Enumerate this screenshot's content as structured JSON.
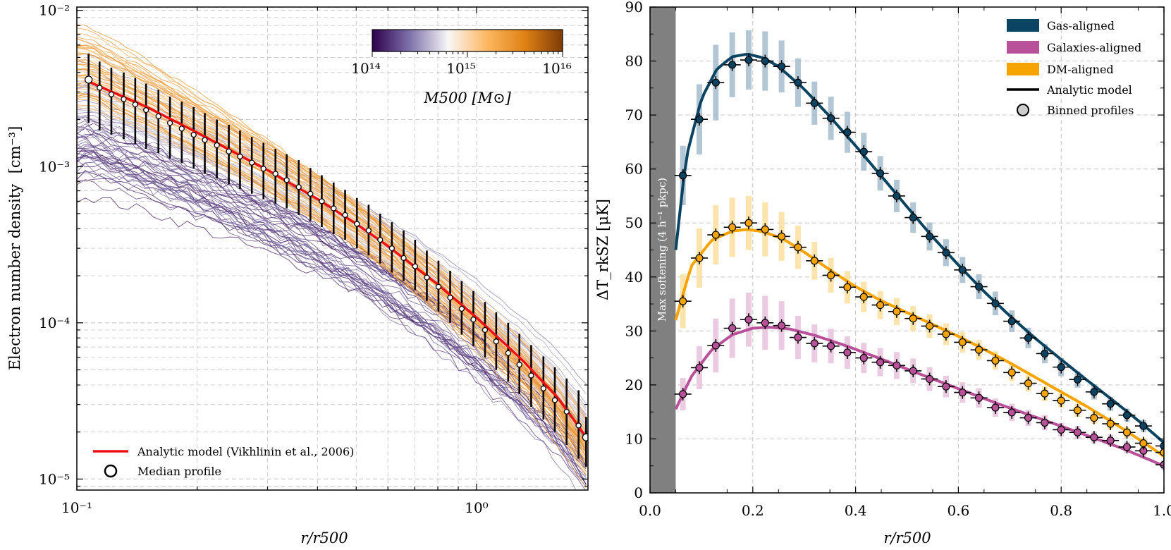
{
  "chart_data": [
    {
      "type": "line",
      "scale": "loglog",
      "xlabel": "r/r500",
      "ylabel": "Electron number density",
      "ylabel_unit": "[cm⁻³]",
      "xlim": [
        0.1,
        1.9
      ],
      "ylim": [
        8.5e-06,
        0.0105
      ],
      "x_ticks": [
        {
          "value": 0.1,
          "label": "10⁻¹"
        },
        {
          "value": 1.0,
          "label": "10⁰"
        }
      ],
      "y_ticks": [
        {
          "value": 1e-05,
          "label": "10⁻⁵"
        },
        {
          "value": 0.0001,
          "label": "10⁻⁴"
        },
        {
          "value": 0.001,
          "label": "10⁻³"
        },
        {
          "value": 0.01,
          "label": "10⁻²"
        }
      ],
      "colorbar": {
        "label": "M500 [M⊙]",
        "range": [
          100000000000000,
          10000000000000000
        ],
        "tick_labels": [
          "10¹⁴",
          "10¹⁵",
          "10¹⁶"
        ],
        "colors": [
          "#2d004b",
          "#8073ac",
          "#f7f7f7",
          "#fdb863",
          "#e08214",
          "#7f3b08"
        ]
      },
      "analytic_model": {
        "name": "Analytic model (Vikhlinin et al., 2006)",
        "color": "#ee1111",
        "x": [
          0.107,
          0.15,
          0.2,
          0.3,
          0.4,
          0.5,
          0.6,
          0.8,
          1.0,
          1.3,
          1.6,
          1.88
        ],
        "y": [
          0.0035,
          0.0024,
          0.00165,
          0.00095,
          0.00062,
          0.00043,
          0.00031,
          0.000176,
          0.000108,
          5.8e-05,
          3.3e-05,
          1.85e-05
        ]
      },
      "median_profile": {
        "name": "Median profile",
        "x": [
          0.107,
          0.114,
          0.122,
          0.131,
          0.14,
          0.149,
          0.16,
          0.171,
          0.183,
          0.196,
          0.209,
          0.224,
          0.24,
          0.256,
          0.274,
          0.293,
          0.314,
          0.335,
          0.359,
          0.384,
          0.41,
          0.439,
          0.469,
          0.502,
          0.537,
          0.574,
          0.614,
          0.657,
          0.702,
          0.751,
          0.803,
          0.859,
          0.918,
          0.982,
          1.05,
          1.12,
          1.2,
          1.28,
          1.37,
          1.47,
          1.57,
          1.68,
          1.8,
          1.88
        ],
        "y": [
          0.0036,
          0.0032,
          0.0029,
          0.0027,
          0.0025,
          0.0023,
          0.0021,
          0.0019,
          0.00175,
          0.0016,
          0.00148,
          0.00137,
          0.00125,
          0.00116,
          0.00106,
          0.00097,
          0.0009,
          0.00082,
          0.00074,
          0.00067,
          0.0006,
          0.00054,
          0.00049,
          0.00043,
          0.00039,
          0.00034,
          0.0003,
          0.00026,
          0.00023,
          0.000195,
          0.00017,
          0.000145,
          0.000123,
          0.000105,
          9e-05,
          7.6e-05,
          6.4e-05,
          5.4e-05,
          4.6e-05,
          3.8e-05,
          3.2e-05,
          2.7e-05,
          2.2e-05,
          1.85e-05
        ],
        "err_low": [
          0.0019,
          0.0017,
          0.0016,
          0.0015,
          0.0014,
          0.0013,
          0.00122,
          0.00113,
          0.00105,
          0.00097,
          0.0009,
          0.00084,
          0.00077,
          0.00072,
          0.00067,
          0.00062,
          0.00058,
          0.00054,
          0.00049,
          0.00045,
          0.00041,
          0.00037,
          0.00034,
          0.0003,
          0.00027,
          0.00024,
          0.00021,
          0.000185,
          0.000162,
          0.000138,
          0.000118,
          0.0001,
          8.4e-05,
          7.1e-05,
          6e-05,
          5e-05,
          4.2e-05,
          3.5e-05,
          2.9e-05,
          2.4e-05,
          2e-05,
          1.65e-05,
          1.35e-05,
          1.2e-05
        ],
        "err_high": [
          0.0053,
          0.0047,
          0.0043,
          0.004,
          0.0037,
          0.0034,
          0.0031,
          0.0028,
          0.0026,
          0.0024,
          0.0022,
          0.002,
          0.00185,
          0.0017,
          0.00155,
          0.00142,
          0.0013,
          0.0012,
          0.0011,
          0.00098,
          0.00088,
          0.00079,
          0.00071,
          0.00063,
          0.00057,
          0.0005,
          0.00044,
          0.00039,
          0.00034,
          0.00029,
          0.00025,
          0.000215,
          0.000185,
          0.00016,
          0.000136,
          0.000117,
          0.0001,
          8.5e-05,
          7.2e-05,
          6.1e-05,
          5.2e-05,
          4.4e-05,
          3.7e-05,
          2.5e-05
        ]
      },
      "legend": [
        {
          "label": "Analytic model (Vikhlinin et al., 2006)",
          "marker": "red-line"
        },
        {
          "label": "Median profile",
          "marker": "open-circle"
        }
      ]
    },
    {
      "type": "line",
      "xlabel": "r/r500",
      "ylabel": "ΔT_rkSZ [μK]",
      "xlim": [
        0.0,
        1.0
      ],
      "ylim": [
        0,
        90
      ],
      "x_ticks": [
        {
          "value": 0.0,
          "label": "0.0"
        },
        {
          "value": 0.2,
          "label": "0.2"
        },
        {
          "value": 0.4,
          "label": "0.4"
        },
        {
          "value": 0.6,
          "label": "0.6"
        },
        {
          "value": 0.8,
          "label": "0.8"
        },
        {
          "value": 1.0,
          "label": "1.0"
        }
      ],
      "y_ticks": [
        {
          "value": 0,
          "label": "0"
        },
        {
          "value": 10,
          "label": "10"
        },
        {
          "value": 20,
          "label": "20"
        },
        {
          "value": 30,
          "label": "30"
        },
        {
          "value": 40,
          "label": "40"
        },
        {
          "value": 50,
          "label": "50"
        },
        {
          "value": 60,
          "label": "60"
        },
        {
          "value": 70,
          "label": "70"
        },
        {
          "value": 80,
          "label": "80"
        },
        {
          "value": 90,
          "label": "90"
        }
      ],
      "softening": {
        "x_max": 0.05,
        "label": "Max softening (4 h⁻¹ pkpc)",
        "color": "#808080"
      },
      "bin_x": [
        0.064,
        0.096,
        0.128,
        0.16,
        0.192,
        0.224,
        0.256,
        0.288,
        0.32,
        0.352,
        0.384,
        0.416,
        0.448,
        0.48,
        0.512,
        0.544,
        0.576,
        0.608,
        0.64,
        0.672,
        0.704,
        0.736,
        0.768,
        0.8,
        0.832,
        0.864,
        0.896,
        0.928,
        0.96,
        1.0
      ],
      "series": [
        {
          "name": "Gas-aligned",
          "color": "#0b4362",
          "band_color": "#a6bccb",
          "binned": [
            58.8,
            69.2,
            76,
            79.3,
            80.2,
            80,
            79,
            76,
            72.2,
            69.4,
            66.8,
            63.2,
            59.2,
            55,
            51,
            47.5,
            44.5,
            41.3,
            38.2,
            35.1,
            31.8,
            28.7,
            25.8,
            23.3,
            21,
            18.7,
            16.5,
            14.4,
            12.4,
            8.7
          ],
          "band_halfwidth": [
            5.5,
            6.5,
            7,
            6,
            5.5,
            5.5,
            4.8,
            4.5,
            4,
            4,
            3.8,
            3.5,
            3.2,
            3,
            2.8,
            2.6,
            2.5,
            2.4,
            2.3,
            2.2,
            2,
            1.9,
            1.8,
            1.7,
            1.5,
            1.4,
            1.3,
            1.2,
            1.1,
            1
          ],
          "model_x": [
            0.05,
            0.07,
            0.1,
            0.13,
            0.16,
            0.19,
            0.22,
            0.25,
            0.3,
            0.35,
            0.4,
            0.45,
            0.5,
            0.55,
            0.6,
            0.65,
            0.7,
            0.75,
            0.8,
            0.85,
            0.9,
            0.95,
            1.0
          ],
          "model_y": [
            45,
            62,
            73,
            78.5,
            80.8,
            81.3,
            80.6,
            79,
            74.8,
            69.7,
            64.3,
            58.7,
            53,
            47.4,
            42.2,
            37.3,
            32.8,
            28.6,
            24.7,
            20.9,
            17.2,
            13.4,
            9.3
          ]
        },
        {
          "name": "Galaxies-aligned",
          "color": "#b9509a",
          "band_color": "#e6c2dc",
          "binned": [
            18.3,
            23.2,
            27.3,
            30.5,
            32.1,
            31.5,
            31,
            28.8,
            27.7,
            27.2,
            26,
            25,
            24.2,
            23.6,
            22.6,
            21.1,
            19.7,
            18.6,
            17.6,
            15.8,
            14.9,
            13.9,
            13,
            11.7,
            11.2,
            10.3,
            9.7,
            8.5,
            7.8,
            5.2
          ],
          "band_halfwidth": [
            3,
            4,
            5,
            5.5,
            5,
            5,
            4.5,
            4,
            3.5,
            3.2,
            3,
            2.8,
            2.6,
            2.5,
            2.3,
            2.2,
            2,
            1.9,
            1.8,
            1.7,
            1.6,
            1.5,
            1.4,
            1.3,
            1.2,
            1.1,
            1.1,
            1,
            1,
            0.9
          ],
          "model_x": [
            0.05,
            0.08,
            0.12,
            0.16,
            0.2,
            0.23,
            0.27,
            0.32,
            0.38,
            0.45,
            0.52,
            0.6,
            0.68,
            0.76,
            0.84,
            0.92,
            1.0
          ],
          "model_y": [
            15.5,
            21.5,
            26.5,
            29.3,
            30.5,
            30.7,
            30.4,
            29.2,
            27.3,
            24.8,
            22.2,
            19.3,
            16.4,
            13.7,
            11,
            8.2,
            5
          ]
        },
        {
          "name": "DM-aligned",
          "color": "#f7a400",
          "band_color": "#fcdf9e",
          "binned": [
            35.5,
            43.5,
            47.8,
            49.2,
            50,
            48.8,
            47.5,
            45.5,
            43,
            40.3,
            38.1,
            36.3,
            34.8,
            33.6,
            32.3,
            30.9,
            29.4,
            27.9,
            26.5,
            24.5,
            22.3,
            20.3,
            18.4,
            17.1,
            15.3,
            13.9,
            12.8,
            11.2,
            9.2,
            7.5
          ],
          "band_halfwidth": [
            5,
            5.5,
            5.5,
            5.5,
            5,
            5,
            4.5,
            4,
            3.5,
            3.2,
            3,
            2.8,
            2.6,
            2.5,
            2.3,
            2.2,
            2,
            1.9,
            1.8,
            1.7,
            1.6,
            1.5,
            1.4,
            1.3,
            1.2,
            1.1,
            1.1,
            1,
            1,
            0.9
          ],
          "model_x": [
            0.05,
            0.08,
            0.12,
            0.16,
            0.19,
            0.22,
            0.26,
            0.3,
            0.35,
            0.4,
            0.45,
            0.5,
            0.55,
            0.6,
            0.65,
            0.7,
            0.75,
            0.8,
            0.85,
            0.9,
            0.95,
            1.0
          ],
          "model_y": [
            32,
            42,
            46.8,
            48.5,
            48.8,
            48.4,
            47,
            44.6,
            41.3,
            38.2,
            35.6,
            33.4,
            31.2,
            29,
            26.6,
            24.1,
            21.4,
            18.7,
            16,
            13.1,
            10,
            6.8
          ]
        }
      ],
      "legend": [
        {
          "label": "Gas-aligned",
          "marker": "patch",
          "color": "#0b4362"
        },
        {
          "label": "Galaxies-aligned",
          "marker": "patch",
          "color": "#b9509a"
        },
        {
          "label": "DM-aligned",
          "marker": "patch",
          "color": "#f7a400"
        },
        {
          "label": "Analytic model",
          "marker": "line",
          "color": "#000000"
        },
        {
          "label": "Binned profiles",
          "marker": "circle",
          "color": "#cccccc"
        }
      ]
    }
  ]
}
